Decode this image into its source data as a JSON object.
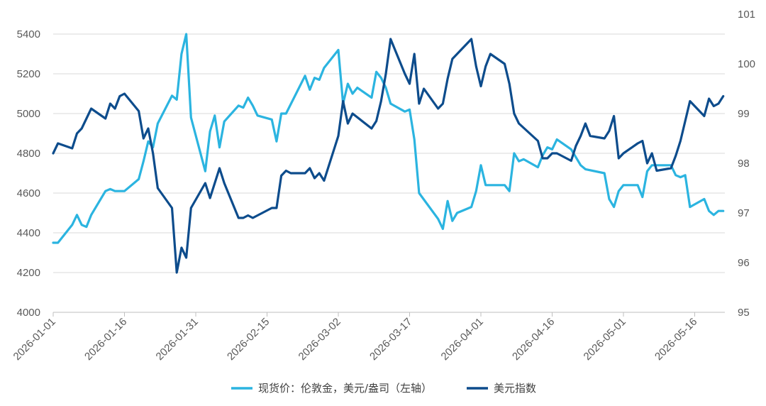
{
  "chart_data": {
    "type": "line",
    "x_ticks": [
      "2026-01-01",
      "2026-01-16",
      "2026-01-31",
      "2026-02-15",
      "2026-03-02",
      "2026-03-17",
      "2026-04-01",
      "2026-04-16",
      "2026-05-01",
      "2026-05-16"
    ],
    "y_left": {
      "min": 4000,
      "max": 5400,
      "step": 200,
      "ticks": [
        "4000",
        "4200",
        "4400",
        "4600",
        "4800",
        "5000",
        "5200",
        "5400"
      ]
    },
    "y_right": {
      "min": 95,
      "max": 101,
      "step": 1,
      "ticks": [
        "95",
        "96",
        "97",
        "98",
        "99",
        "100",
        "101"
      ]
    },
    "grid": "horizontal",
    "legend_position": "bottom",
    "series": [
      {
        "name": "现货价：伦敦金，美元/盎司（左轴）",
        "axis": "left",
        "color": "#2BB4E0",
        "points": [
          [
            "2026-01-01",
            4350
          ],
          [
            "2026-01-02",
            4350
          ],
          [
            "2026-01-05",
            4440
          ],
          [
            "2026-01-06",
            4490
          ],
          [
            "2026-01-07",
            4440
          ],
          [
            "2026-01-08",
            4430
          ],
          [
            "2026-01-09",
            4490
          ],
          [
            "2026-01-12",
            4610
          ],
          [
            "2026-01-13",
            4620
          ],
          [
            "2026-01-14",
            4610
          ],
          [
            "2026-01-15",
            4610
          ],
          [
            "2026-01-16",
            4610
          ],
          [
            "2026-01-19",
            4670
          ],
          [
            "2026-01-20",
            4760
          ],
          [
            "2026-01-21",
            4860
          ],
          [
            "2026-01-22",
            4830
          ],
          [
            "2026-01-23",
            4950
          ],
          [
            "2026-01-26",
            5090
          ],
          [
            "2026-01-27",
            5070
          ],
          [
            "2026-01-28",
            5300
          ],
          [
            "2026-01-29",
            5400
          ],
          [
            "2026-01-30",
            4980
          ],
          [
            "2026-02-02",
            4710
          ],
          [
            "2026-02-03",
            4910
          ],
          [
            "2026-02-04",
            4990
          ],
          [
            "2026-02-05",
            4830
          ],
          [
            "2026-02-06",
            4960
          ],
          [
            "2026-02-09",
            5040
          ],
          [
            "2026-02-10",
            5030
          ],
          [
            "2026-02-11",
            5080
          ],
          [
            "2026-02-12",
            5040
          ],
          [
            "2026-02-13",
            4990
          ],
          [
            "2026-02-16",
            4970
          ],
          [
            "2026-02-17",
            4860
          ],
          [
            "2026-02-18",
            5000
          ],
          [
            "2026-02-19",
            5000
          ],
          [
            "2026-02-23",
            5190
          ],
          [
            "2026-02-24",
            5120
          ],
          [
            "2026-02-25",
            5180
          ],
          [
            "2026-02-26",
            5170
          ],
          [
            "2026-02-27",
            5230
          ],
          [
            "2026-03-02",
            5320
          ],
          [
            "2026-03-03",
            5050
          ],
          [
            "2026-03-04",
            5150
          ],
          [
            "2026-03-05",
            5100
          ],
          [
            "2026-03-06",
            5130
          ],
          [
            "2026-03-09",
            5080
          ],
          [
            "2026-03-10",
            5210
          ],
          [
            "2026-03-11",
            5180
          ],
          [
            "2026-03-12",
            5130
          ],
          [
            "2026-03-13",
            5050
          ],
          [
            "2026-03-16",
            5010
          ],
          [
            "2026-03-17",
            5020
          ],
          [
            "2026-03-18",
            4870
          ],
          [
            "2026-03-19",
            4600
          ],
          [
            "2026-03-23",
            4470
          ],
          [
            "2026-03-24",
            4420
          ],
          [
            "2026-03-25",
            4560
          ],
          [
            "2026-03-26",
            4460
          ],
          [
            "2026-03-27",
            4500
          ],
          [
            "2026-03-30",
            4530
          ],
          [
            "2026-03-31",
            4610
          ],
          [
            "2026-04-01",
            4740
          ],
          [
            "2026-04-02",
            4640
          ],
          [
            "2026-04-06",
            4640
          ],
          [
            "2026-04-07",
            4610
          ],
          [
            "2026-04-08",
            4800
          ],
          [
            "2026-04-09",
            4760
          ],
          [
            "2026-04-10",
            4770
          ],
          [
            "2026-04-13",
            4730
          ],
          [
            "2026-04-14",
            4790
          ],
          [
            "2026-04-15",
            4830
          ],
          [
            "2026-04-16",
            4820
          ],
          [
            "2026-04-17",
            4870
          ],
          [
            "2026-04-20",
            4820
          ],
          [
            "2026-04-21",
            4780
          ],
          [
            "2026-04-22",
            4740
          ],
          [
            "2026-04-23",
            4720
          ],
          [
            "2026-04-27",
            4700
          ],
          [
            "2026-04-28",
            4570
          ],
          [
            "2026-04-29",
            4530
          ],
          [
            "2026-04-30",
            4610
          ],
          [
            "2026-05-01",
            4640
          ],
          [
            "2026-05-04",
            4640
          ],
          [
            "2026-05-05",
            4580
          ],
          [
            "2026-05-06",
            4710
          ],
          [
            "2026-05-07",
            4740
          ],
          [
            "2026-05-08",
            4740
          ],
          [
            "2026-05-11",
            4740
          ],
          [
            "2026-05-12",
            4690
          ],
          [
            "2026-05-13",
            4680
          ],
          [
            "2026-05-14",
            4690
          ],
          [
            "2026-05-15",
            4530
          ],
          [
            "2026-05-18",
            4570
          ],
          [
            "2026-05-19",
            4510
          ],
          [
            "2026-05-20",
            4490
          ],
          [
            "2026-05-21",
            4510
          ],
          [
            "2026-05-22",
            4510
          ]
        ]
      },
      {
        "name": "美元指数",
        "axis": "right",
        "color": "#0D4C8C",
        "points": [
          [
            "2026-01-01",
            98.2
          ],
          [
            "2026-01-02",
            98.4
          ],
          [
            "2026-01-05",
            98.3
          ],
          [
            "2026-01-06",
            98.6
          ],
          [
            "2026-01-07",
            98.7
          ],
          [
            "2026-01-08",
            98.9
          ],
          [
            "2026-01-09",
            99.1
          ],
          [
            "2026-01-12",
            98.9
          ],
          [
            "2026-01-13",
            99.2
          ],
          [
            "2026-01-14",
            99.1
          ],
          [
            "2026-01-15",
            99.35
          ],
          [
            "2026-01-16",
            99.4
          ],
          [
            "2026-01-19",
            99.05
          ],
          [
            "2026-01-20",
            98.5
          ],
          [
            "2026-01-21",
            98.7
          ],
          [
            "2026-01-22",
            98.2
          ],
          [
            "2026-01-23",
            97.5
          ],
          [
            "2026-01-26",
            97.1
          ],
          [
            "2026-01-27",
            95.8
          ],
          [
            "2026-01-28",
            96.3
          ],
          [
            "2026-01-29",
            96.1
          ],
          [
            "2026-01-30",
            97.1
          ],
          [
            "2026-02-02",
            97.6
          ],
          [
            "2026-02-03",
            97.3
          ],
          [
            "2026-02-04",
            97.6
          ],
          [
            "2026-02-05",
            97.9
          ],
          [
            "2026-02-06",
            97.6
          ],
          [
            "2026-02-09",
            96.9
          ],
          [
            "2026-02-10",
            96.9
          ],
          [
            "2026-02-11",
            96.95
          ],
          [
            "2026-02-12",
            96.9
          ],
          [
            "2026-02-16",
            97.1
          ],
          [
            "2026-02-17",
            97.1
          ],
          [
            "2026-02-18",
            97.75
          ],
          [
            "2026-02-19",
            97.85
          ],
          [
            "2026-02-20",
            97.8
          ],
          [
            "2026-02-23",
            97.8
          ],
          [
            "2026-02-24",
            97.9
          ],
          [
            "2026-02-25",
            97.7
          ],
          [
            "2026-02-26",
            97.8
          ],
          [
            "2026-02-27",
            97.65
          ],
          [
            "2026-03-02",
            98.55
          ],
          [
            "2026-03-03",
            99.25
          ],
          [
            "2026-03-04",
            98.8
          ],
          [
            "2026-03-05",
            99.0
          ],
          [
            "2026-03-09",
            98.7
          ],
          [
            "2026-03-10",
            98.85
          ],
          [
            "2026-03-11",
            99.25
          ],
          [
            "2026-03-12",
            99.8
          ],
          [
            "2026-03-13",
            100.5
          ],
          [
            "2026-03-16",
            99.8
          ],
          [
            "2026-03-17",
            99.6
          ],
          [
            "2026-03-18",
            100.2
          ],
          [
            "2026-03-19",
            99.2
          ],
          [
            "2026-03-20",
            99.5
          ],
          [
            "2026-03-23",
            99.1
          ],
          [
            "2026-03-24",
            99.2
          ],
          [
            "2026-03-25",
            99.7
          ],
          [
            "2026-03-26",
            100.1
          ],
          [
            "2026-03-27",
            100.2
          ],
          [
            "2026-03-30",
            100.5
          ],
          [
            "2026-03-31",
            99.95
          ],
          [
            "2026-04-01",
            99.55
          ],
          [
            "2026-04-02",
            99.95
          ],
          [
            "2026-04-03",
            100.2
          ],
          [
            "2026-04-06",
            100.0
          ],
          [
            "2026-04-07",
            99.6
          ],
          [
            "2026-04-08",
            99.0
          ],
          [
            "2026-04-09",
            98.8
          ],
          [
            "2026-04-13",
            98.45
          ],
          [
            "2026-04-14",
            98.1
          ],
          [
            "2026-04-15",
            98.1
          ],
          [
            "2026-04-16",
            98.2
          ],
          [
            "2026-04-17",
            98.2
          ],
          [
            "2026-04-20",
            98.05
          ],
          [
            "2026-04-21",
            98.35
          ],
          [
            "2026-04-22",
            98.55
          ],
          [
            "2026-04-23",
            98.8
          ],
          [
            "2026-04-24",
            98.55
          ],
          [
            "2026-04-27",
            98.5
          ],
          [
            "2026-04-28",
            98.65
          ],
          [
            "2026-04-29",
            98.95
          ],
          [
            "2026-04-30",
            98.1
          ],
          [
            "2026-05-01",
            98.2
          ],
          [
            "2026-05-04",
            98.4
          ],
          [
            "2026-05-05",
            98.45
          ],
          [
            "2026-05-06",
            98.0
          ],
          [
            "2026-05-07",
            98.2
          ],
          [
            "2026-05-08",
            97.85
          ],
          [
            "2026-05-11",
            97.9
          ],
          [
            "2026-05-12",
            98.15
          ],
          [
            "2026-05-13",
            98.45
          ],
          [
            "2026-05-15",
            99.25
          ],
          [
            "2026-05-18",
            98.95
          ],
          [
            "2026-05-19",
            99.3
          ],
          [
            "2026-05-20",
            99.15
          ],
          [
            "2026-05-21",
            99.2
          ],
          [
            "2026-05-22",
            99.35
          ]
        ]
      }
    ]
  }
}
